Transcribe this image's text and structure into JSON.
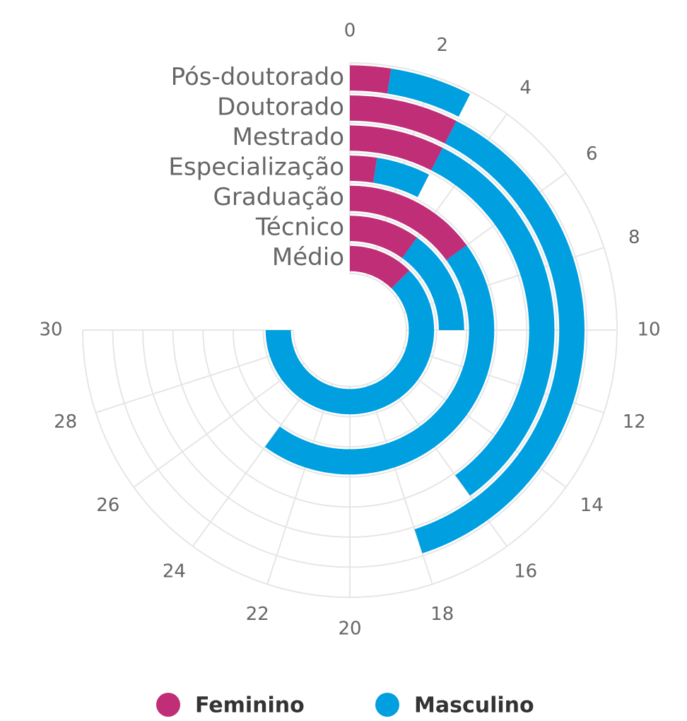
{
  "chart_data": {
    "type": "radial_stacked_bar",
    "categories": [
      "Pós-doutorado",
      "Doutorado",
      "Mestrado",
      "Especialização",
      "Graduação",
      "Técnico",
      "Médio"
    ],
    "series": [
      {
        "name": "Feminino",
        "color": "#bf2e77",
        "values": [
          1,
          3,
          3,
          1,
          6,
          4,
          5
        ]
      },
      {
        "name": "Masculino",
        "color": "#009fe0",
        "values": [
          2,
          15,
          13,
          2,
          18,
          6,
          25
        ]
      }
    ],
    "xlim": [
      0,
      30
    ],
    "xticks": [
      0,
      2,
      4,
      6,
      8,
      10,
      12,
      14,
      16,
      18,
      20,
      22,
      24,
      26,
      28,
      30
    ],
    "grid": true,
    "legend": "bottom"
  }
}
